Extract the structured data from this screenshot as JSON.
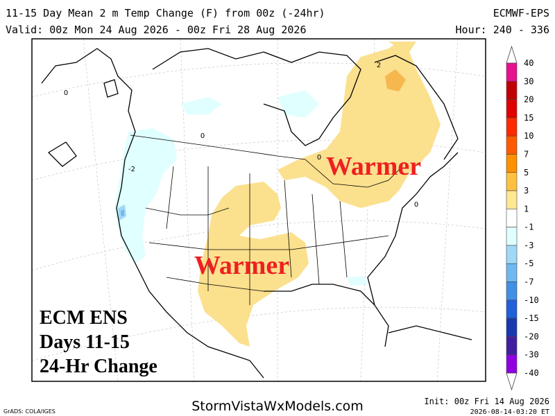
{
  "header": {
    "title": "11-15 Day Mean 2 m Temp Change (F) from 00z (-24hr)",
    "model": "ECMWF-EPS",
    "valid": "Valid: 00z Mon 24 Aug 2026 - 00z Fri 28 Aug 2026",
    "hour": "Hour: 240 - 336"
  },
  "map": {
    "annotations": [
      "Warmer",
      "Warmer"
    ],
    "label_lines": [
      "ECM ENS",
      "Days 11-15",
      "24-Hr Change"
    ],
    "contour_labels": [
      "0",
      "2",
      "-2",
      "0",
      "0",
      "0"
    ]
  },
  "colorbar": {
    "labels": [
      "40",
      "30",
      "20",
      "15",
      "10",
      "7",
      "5",
      "3",
      "1",
      "-1",
      "-3",
      "-5",
      "-7",
      "-10",
      "-15",
      "-20",
      "-30",
      "-40"
    ],
    "colors": [
      "#e8108f",
      "#c00000",
      "#e00000",
      "#ff2a00",
      "#ff5a00",
      "#ff9000",
      "#ffc040",
      "#ffe890",
      "#ffffff",
      "#e0ffff",
      "#a0d8f8",
      "#70b8f0",
      "#4090e8",
      "#2060d8",
      "#1838b0",
      "#4020a0",
      "#9000e0"
    ]
  },
  "footer": {
    "credit": "GrADS: COLA/IGES",
    "site": "StormVistaWxModels.com",
    "init": "Init: 00z Fri 14 Aug 2026",
    "timestamp": "2026-08-14-03:20 ET"
  }
}
